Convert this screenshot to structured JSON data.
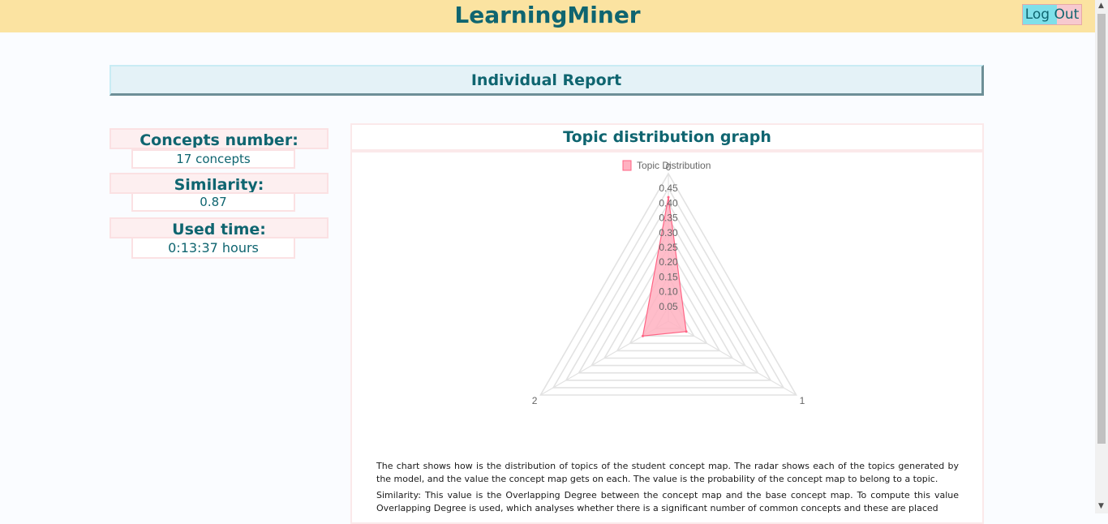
{
  "header": {
    "title": "LearningMiner",
    "logout_label": "Log Out"
  },
  "report": {
    "title": "Individual Report"
  },
  "stats": {
    "concepts_label": "Concepts number:",
    "concepts_value": "17 concepts",
    "similarity_label": "Similarity:",
    "similarity_value": "0.87",
    "time_label": "Used time:",
    "time_value": "0:13:37 hours"
  },
  "panel": {
    "title": "Topic distribution graph",
    "description_1": "The chart shows how is the distribution of topics of the student concept map. The radar shows each of the topics generated by the model, and the value the concept map gets on each. The value is the probability of the concept map to belong to a topic.",
    "description_2": "Similarity: This value is the Overlapping Degree between the concept map and the base concept map. To compute this value Overlapping Degree is used, which analyses whether there is a significant number of common concepts and these are placed"
  },
  "chart_data": {
    "type": "radar",
    "legend": "Topic Distribution",
    "axes": [
      "0",
      "1",
      "2"
    ],
    "values": [
      0.42,
      0.07,
      0.1
    ],
    "ticks": [
      "0.05",
      "0.10",
      "0.15",
      "0.20",
      "0.25",
      "0.30",
      "0.35",
      "0.40",
      "0.45"
    ],
    "r_max": 0.5,
    "fill_color": "#ffb1c1",
    "stroke_color": "#ff6384",
    "grid": true,
    "legend_position": "top"
  },
  "colors": {
    "accent": "#0f6570",
    "header_bg": "#fbe3a1",
    "banner_bg": "#e4f2f7"
  }
}
